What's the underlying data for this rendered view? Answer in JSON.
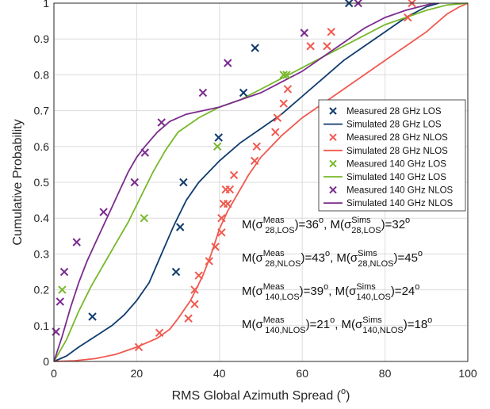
{
  "chart_data": {
    "type": "line",
    "title": "",
    "xlabel_main": "RMS Global Azimuth Spread (",
    "xlabel_sup": "o",
    "xlabel_end": ")",
    "ylabel": "Cumulative Probability",
    "xlim": [
      0,
      100
    ],
    "ylim": [
      0,
      1
    ],
    "xticks": [
      0,
      20,
      40,
      60,
      80,
      100
    ],
    "yticks": [
      0,
      0.1,
      0.2,
      0.3,
      0.4,
      0.5,
      0.6,
      0.7,
      0.8,
      0.9,
      1
    ],
    "grid": true,
    "legend_position": "right",
    "series": [
      {
        "name": "Measured 28 GHz LOS",
        "kind": "marker",
        "color": "#0f3b6e",
        "x": [
          9.3,
          29.5,
          30.5,
          31.3,
          39.8,
          45.8,
          48.6,
          71.3
        ],
        "y": [
          0.125,
          0.25,
          0.375,
          0.5,
          0.625,
          0.75,
          0.875,
          1.0
        ]
      },
      {
        "name": "Simulated 28 GHz LOS",
        "kind": "line",
        "color": "#0f3b6e",
        "x": [
          0,
          3,
          6,
          10,
          14,
          17,
          20,
          23,
          26,
          29,
          32,
          35,
          40,
          45,
          50,
          55,
          60,
          65,
          70,
          75,
          80,
          85,
          90,
          93
        ],
        "y": [
          0,
          0.015,
          0.04,
          0.07,
          0.1,
          0.13,
          0.17,
          0.22,
          0.3,
          0.38,
          0.45,
          0.5,
          0.56,
          0.61,
          0.65,
          0.69,
          0.74,
          0.79,
          0.84,
          0.88,
          0.92,
          0.96,
          0.99,
          1.0
        ]
      },
      {
        "name": "Measured 28 GHz NLOS",
        "kind": "marker",
        "color": "#f0594f",
        "x": [
          20.5,
          25.5,
          32.5,
          34,
          34,
          35,
          37.5,
          39,
          40.5,
          40.5,
          41,
          41.5,
          42,
          42.5,
          43.5,
          48.5,
          49,
          53.5,
          54,
          55.5,
          56.5,
          62,
          66,
          67,
          85.5,
          86.5
        ],
        "y": [
          0.04,
          0.08,
          0.12,
          0.16,
          0.2,
          0.24,
          0.28,
          0.32,
          0.36,
          0.4,
          0.44,
          0.48,
          0.44,
          0.48,
          0.52,
          0.56,
          0.6,
          0.64,
          0.68,
          0.72,
          0.76,
          0.88,
          0.88,
          0.92,
          0.96,
          1.0
        ]
      },
      {
        "name": "Simulated 28 GHz NLOS",
        "kind": "line",
        "color": "#f0594f",
        "x": [
          0,
          5,
          10,
          15,
          20,
          25,
          28,
          30,
          33,
          36,
          38,
          40,
          42,
          44,
          47,
          50,
          55,
          60,
          65,
          70,
          75,
          80,
          85,
          90,
          95,
          98,
          100
        ],
        "y": [
          0,
          0.002,
          0.008,
          0.02,
          0.04,
          0.065,
          0.09,
          0.12,
          0.17,
          0.24,
          0.3,
          0.37,
          0.42,
          0.46,
          0.52,
          0.57,
          0.63,
          0.68,
          0.72,
          0.76,
          0.8,
          0.84,
          0.88,
          0.92,
          0.97,
          0.99,
          1.0
        ]
      },
      {
        "name": "Measured 140 GHz LOS",
        "kind": "marker",
        "color": "#77b82a",
        "x": [
          2,
          21.8,
          39.5,
          55.5,
          56.2
        ],
        "y": [
          0.2,
          0.4,
          0.6,
          0.8,
          0.8
        ]
      },
      {
        "name": "Simulated 140 GHz LOS",
        "kind": "line",
        "color": "#77b82a",
        "x": [
          0,
          3,
          6,
          9,
          12,
          15,
          18,
          21,
          24,
          27,
          30,
          35,
          40,
          45,
          50,
          55,
          60,
          65,
          70,
          75,
          80,
          85,
          90,
          95,
          100
        ],
        "y": [
          0,
          0.06,
          0.14,
          0.21,
          0.27,
          0.33,
          0.39,
          0.46,
          0.53,
          0.59,
          0.64,
          0.68,
          0.71,
          0.73,
          0.76,
          0.79,
          0.82,
          0.85,
          0.88,
          0.91,
          0.94,
          0.96,
          0.98,
          0.995,
          1.0
        ]
      },
      {
        "name": "Measured 140 GHz NLOS",
        "kind": "marker",
        "color": "#7b2c8e",
        "x": [
          0.5,
          1.5,
          2.5,
          5.5,
          12,
          19.5,
          22,
          26,
          36,
          42,
          60.5,
          73.5
        ],
        "y": [
          0.083,
          0.167,
          0.25,
          0.333,
          0.417,
          0.5,
          0.583,
          0.667,
          0.75,
          0.833,
          0.917,
          1.0
        ]
      },
      {
        "name": "Simulated 140 GHz NLOS",
        "kind": "line",
        "color": "#7b2c8e",
        "x": [
          0,
          2,
          4,
          6,
          8,
          10,
          12,
          14,
          16,
          18,
          20,
          22,
          25,
          28,
          32,
          36,
          40,
          45,
          50,
          55,
          60,
          65,
          70,
          75,
          80,
          85,
          90,
          92
        ],
        "y": [
          0,
          0.07,
          0.15,
          0.22,
          0.28,
          0.33,
          0.38,
          0.43,
          0.48,
          0.53,
          0.57,
          0.6,
          0.64,
          0.67,
          0.69,
          0.7,
          0.71,
          0.73,
          0.75,
          0.78,
          0.81,
          0.85,
          0.89,
          0.93,
          0.96,
          0.98,
          0.995,
          1.0
        ]
      }
    ],
    "annotations": [
      {
        "pre": "M(σ",
        "sup": "Meas",
        "sub": "28,LOS",
        "mid": ")=36",
        "deg": "o",
        "sep": ", M(σ",
        "sup2": "Sims",
        "sub2": "28,LOS",
        "mid2": ")=32",
        "deg2": "o"
      },
      {
        "pre": "M(σ",
        "sup": "Meas",
        "sub": "28,NLOS",
        "mid": ")=43",
        "deg": "o",
        "sep": ", M(σ",
        "sup2": "Sims",
        "sub2": "28,NLOS",
        "mid2": ")=45",
        "deg2": "o"
      },
      {
        "pre": "M(σ",
        "sup": "Meas",
        "sub": "140,LOS",
        "mid": ")=39",
        "deg": "o",
        "sep": ", M(σ",
        "sup2": "Sims",
        "sub2": "140,LOS",
        "mid2": ")=24",
        "deg2": "o"
      },
      {
        "pre": "M(σ",
        "sup": "Meas",
        "sub": "140,NLOS",
        "mid": ")=21",
        "deg": "o",
        "sep": ", M(σ",
        "sup2": "Sims",
        "sub2": "140,NLOS",
        "mid2": ")=18",
        "deg2": "o"
      }
    ]
  }
}
